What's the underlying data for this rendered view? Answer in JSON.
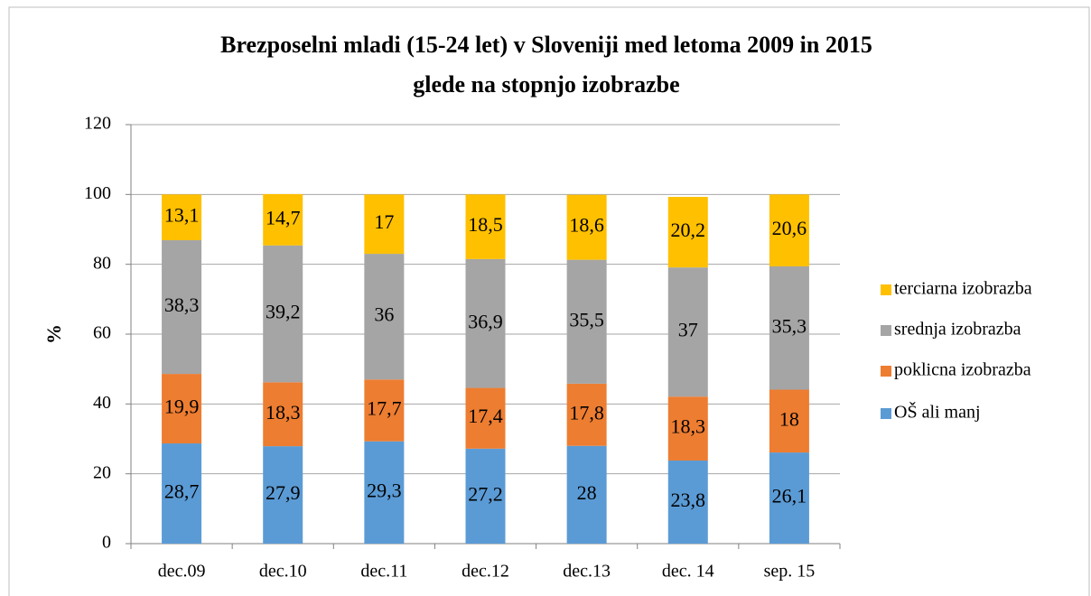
{
  "chart_data": {
    "type": "stacked_bar",
    "title": "Brezposelni mladi (15-24 let) v Sloveniji med letoma 2009 in 2015",
    "subtitle": "glede na stopnjo izobrazbe",
    "y_label": "%",
    "categories": [
      "dec.09",
      "dec.10",
      "dec.11",
      "dec.12",
      "dec.13",
      "dec. 14",
      "sep. 15"
    ],
    "series": [
      {
        "name": "OŠ ali manj",
        "color": "#5b9bd5",
        "values": [
          28.7,
          27.9,
          29.3,
          27.2,
          28,
          23.8,
          26.1
        ],
        "value_labels": [
          "28,7",
          "27,9",
          "29,3",
          "27,2",
          "28",
          "23,8",
          "26,1"
        ]
      },
      {
        "name": "poklicna izobrazba",
        "color": "#ed7d31",
        "values": [
          19.9,
          18.3,
          17.7,
          17.4,
          17.8,
          18.3,
          18
        ],
        "value_labels": [
          "19,9",
          "18,3",
          "17,7",
          "17,4",
          "17,8",
          "18,3",
          "18"
        ]
      },
      {
        "name": "srednja izobrazba",
        "color": "#a5a5a5",
        "values": [
          38.3,
          39.2,
          36,
          36.9,
          35.5,
          37,
          35.3
        ],
        "value_labels": [
          "38,3",
          "39,2",
          "36",
          "36,9",
          "35,5",
          "37",
          "35,3"
        ]
      },
      {
        "name": "terciarna izobrazba",
        "color": "#ffc000",
        "values": [
          13.1,
          14.7,
          17,
          18.5,
          18.6,
          20.2,
          20.6
        ],
        "value_labels": [
          "13,1",
          "14,7",
          "17",
          "18,5",
          "18,6",
          "20,2",
          "20,6"
        ]
      }
    ],
    "ylim": [
      0,
      120
    ],
    "yticks": [
      0,
      20,
      40,
      60,
      80,
      100,
      120
    ],
    "grid": true,
    "legend": "right"
  }
}
